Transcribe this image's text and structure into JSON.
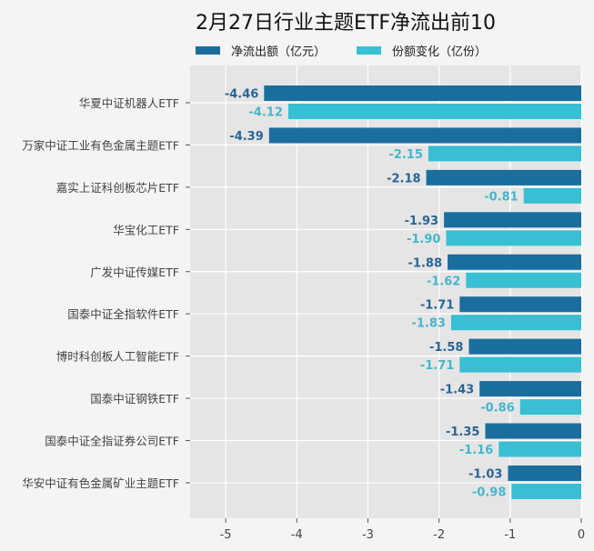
{
  "chart_data": {
    "type": "bar",
    "orientation": "horizontal",
    "title": "2月27日行业主题ETF净流出前10",
    "categories": [
      "华夏中证机器人ETF",
      "万家中证工业有色金属主题ETF",
      "嘉实上证科创板芯片ETF",
      "华宝化工ETF",
      "广发中证传媒ETF",
      "国泰中证全指软件ETF",
      "博时科创板人工智能ETF",
      "国泰中证钢铁ETF",
      "国泰中证全指证券公司ETF",
      "华安中证有色金属矿业主题ETF"
    ],
    "series": [
      {
        "name": "净流出额（亿元）",
        "color": "#1a6e9e",
        "label_color": "#2a6494",
        "values": [
          -4.46,
          -4.39,
          -2.18,
          -1.93,
          -1.88,
          -1.71,
          -1.58,
          -1.43,
          -1.35,
          -1.03
        ]
      },
      {
        "name": "份额变化（亿份）",
        "color": "#38bfd3",
        "label_color": "#45b6cc",
        "values": [
          -4.12,
          -2.15,
          -0.81,
          -1.9,
          -1.62,
          -1.83,
          -1.71,
          -0.86,
          -1.16,
          -0.98
        ]
      }
    ],
    "xlim": [
      -5.5,
      0
    ],
    "xticks": [
      -5,
      -4,
      -3,
      -2,
      -1,
      0
    ],
    "grid": true,
    "legend": "top",
    "xlabel": "",
    "ylabel": ""
  }
}
